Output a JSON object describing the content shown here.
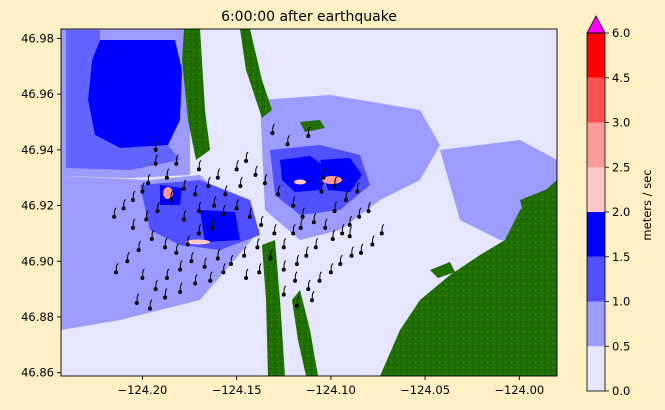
{
  "chart_data": {
    "type": "heatmap",
    "title": "6:00:00 after earthquake",
    "x_ticks": [
      -124.2,
      -124.15,
      -124.1,
      -124.05,
      -124.0
    ],
    "x_tick_labels": [
      "−124.20",
      "−124.15",
      "−124.10",
      "−124.05",
      "−124.00"
    ],
    "y_ticks": [
      46.86,
      46.88,
      46.9,
      46.92,
      46.94,
      46.96,
      46.98
    ],
    "y_tick_labels": [
      "46.86",
      "46.88",
      "46.90",
      "46.92",
      "46.94",
      "46.96",
      "46.98"
    ],
    "xlim": [
      -124.2432,
      -123.98
    ],
    "ylim": [
      46.8588,
      46.9834
    ],
    "colorbar": {
      "label": "meters / sec",
      "levels": [
        0.0,
        0.5,
        1.0,
        1.5,
        2.0,
        2.5,
        3.0,
        4.5,
        6.0
      ],
      "level_labels": [
        "0.0",
        "0.5",
        "1.0",
        "1.5",
        "2.0",
        "2.5",
        "3.0",
        "4.5",
        "6.0"
      ],
      "colors": [
        "#e6e6ff",
        "#9c9cff",
        "#5050ff",
        "#0000ff",
        "#ffc8c8",
        "#ff9a9a",
        "#ff5050",
        "#ff0000"
      ],
      "extend_color": "#ff00ff"
    },
    "colors": {
      "land": "#1f6e00",
      "background": "#fef0c5"
    },
    "tracer_particles": [
      [
        -124.193,
        46.94
      ],
      [
        -124.193,
        46.935
      ],
      [
        -124.197,
        46.928
      ],
      [
        -124.2,
        46.925
      ],
      [
        -124.205,
        46.922
      ],
      [
        -124.21,
        46.919
      ],
      [
        -124.215,
        46.916
      ],
      [
        -124.205,
        46.912
      ],
      [
        -124.198,
        46.915
      ],
      [
        -124.192,
        46.918
      ],
      [
        -124.185,
        46.922
      ],
      [
        -124.178,
        46.926
      ],
      [
        -124.172,
        46.924
      ],
      [
        -124.165,
        46.927
      ],
      [
        -124.16,
        46.93
      ],
      [
        -124.15,
        46.933
      ],
      [
        -124.145,
        46.936
      ],
      [
        -124.14,
        46.931
      ],
      [
        -124.135,
        46.928
      ],
      [
        -124.128,
        46.924
      ],
      [
        -124.12,
        46.92
      ],
      [
        -124.115,
        46.916
      ],
      [
        -124.109,
        46.914
      ],
      [
        -124.103,
        46.912
      ],
      [
        -124.099,
        46.908
      ],
      [
        -124.094,
        46.91
      ],
      [
        -124.09,
        46.913
      ],
      [
        -124.085,
        46.916
      ],
      [
        -124.08,
        46.918
      ],
      [
        -124.108,
        46.905
      ],
      [
        -124.113,
        46.902
      ],
      [
        -124.118,
        46.899
      ],
      [
        -124.125,
        46.905
      ],
      [
        -124.13,
        46.91
      ],
      [
        -124.137,
        46.913
      ],
      [
        -124.143,
        46.916
      ],
      [
        -124.15,
        46.919
      ],
      [
        -124.157,
        46.917
      ],
      [
        -124.163,
        46.912
      ],
      [
        -124.17,
        46.91
      ],
      [
        -124.176,
        46.906
      ],
      [
        -124.182,
        46.903
      ],
      [
        -124.188,
        46.905
      ],
      [
        -124.195,
        46.908
      ],
      [
        -124.202,
        46.904
      ],
      [
        -124.208,
        46.9
      ],
      [
        -124.214,
        46.896
      ],
      [
        -124.2,
        46.894
      ],
      [
        -124.193,
        46.89
      ],
      [
        -124.187,
        46.894
      ],
      [
        -124.18,
        46.897
      ],
      [
        -124.174,
        46.9
      ],
      [
        -124.167,
        46.898
      ],
      [
        -124.16,
        46.901
      ],
      [
        -124.153,
        46.899
      ],
      [
        -124.146,
        46.902
      ],
      [
        -124.139,
        46.905
      ],
      [
        -124.132,
        46.901
      ],
      [
        -124.125,
        46.897
      ],
      [
        -124.119,
        46.893
      ],
      [
        -124.112,
        46.89
      ],
      [
        -124.106,
        46.893
      ],
      [
        -124.1,
        46.896
      ],
      [
        -124.095,
        46.899
      ],
      [
        -124.089,
        46.902
      ],
      [
        -124.11,
        46.886
      ],
      [
        -124.118,
        46.884
      ],
      [
        -124.125,
        46.888
      ],
      [
        -124.203,
        46.885
      ],
      [
        -124.196,
        46.883
      ],
      [
        -124.188,
        46.887
      ],
      [
        -124.18,
        46.889
      ],
      [
        -124.172,
        46.892
      ],
      [
        -124.164,
        46.893
      ],
      [
        -124.157,
        46.896
      ],
      [
        -124.145,
        46.894
      ],
      [
        -124.138,
        46.896
      ],
      [
        -124.105,
        46.925
      ],
      [
        -124.098,
        46.927
      ],
      [
        -124.092,
        46.922
      ],
      [
        -124.086,
        46.925
      ],
      [
        -124.123,
        46.942
      ],
      [
        -124.112,
        46.945
      ],
      [
        -124.104,
        46.93
      ],
      [
        -124.131,
        46.946
      ],
      [
        -124.098,
        46.918
      ],
      [
        -124.09,
        46.909
      ],
      [
        -124.084,
        46.903
      ],
      [
        -124.078,
        46.906
      ],
      [
        -124.073,
        46.91
      ],
      [
        -124.178,
        46.915
      ],
      [
        -124.17,
        46.918
      ],
      [
        -124.162,
        46.92
      ],
      [
        -124.156,
        46.924
      ],
      [
        -124.148,
        46.927
      ],
      [
        -124.187,
        46.93
      ],
      [
        -124.182,
        46.935
      ],
      [
        -124.17,
        46.933
      ],
      [
        -124.12,
        46.91
      ],
      [
        -124.116,
        46.912
      ]
    ]
  }
}
